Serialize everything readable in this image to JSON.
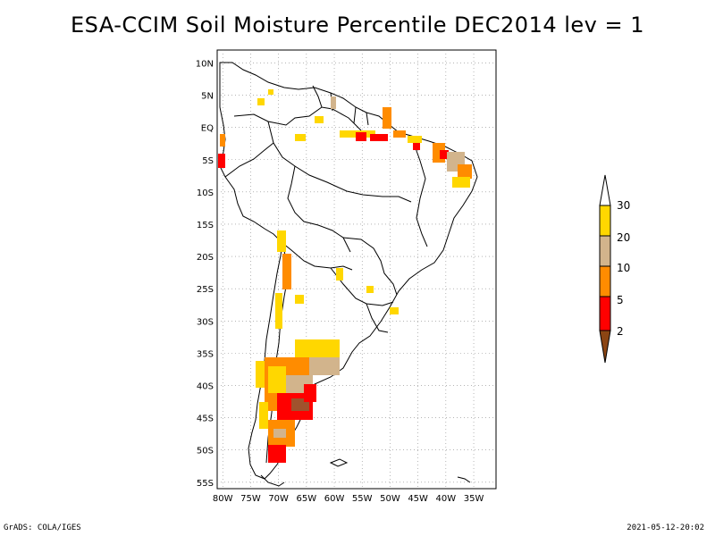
{
  "title": "ESA-CCIM Soil Moisture Percentile DEC2014 lev = 1",
  "map": {
    "lat_ticks": [
      "10N",
      "5N",
      "EQ",
      "5S",
      "10S",
      "15S",
      "20S",
      "25S",
      "30S",
      "35S",
      "40S",
      "45S",
      "50S",
      "55S"
    ],
    "lon_ticks": [
      "80W",
      "75W",
      "70W",
      "65W",
      "60W",
      "55W",
      "50W",
      "45W",
      "40W",
      "35W"
    ],
    "lat_range": [
      -56,
      12
    ],
    "lon_range": [
      -81,
      -31
    ]
  },
  "legend": {
    "labels": [
      "30",
      "20",
      "10",
      "5",
      "2"
    ],
    "colors": {
      "above_30": "#ffffff",
      "c20_30": "#ffd700",
      "c10_20": "#d2b48c",
      "c5_10": "#ff8c00",
      "c2_5": "#ff0000",
      "below_2": "#8b4513"
    }
  },
  "footer": {
    "left": "GrADS: COLA/IGES",
    "right": "2021-05-12-20:02"
  }
}
